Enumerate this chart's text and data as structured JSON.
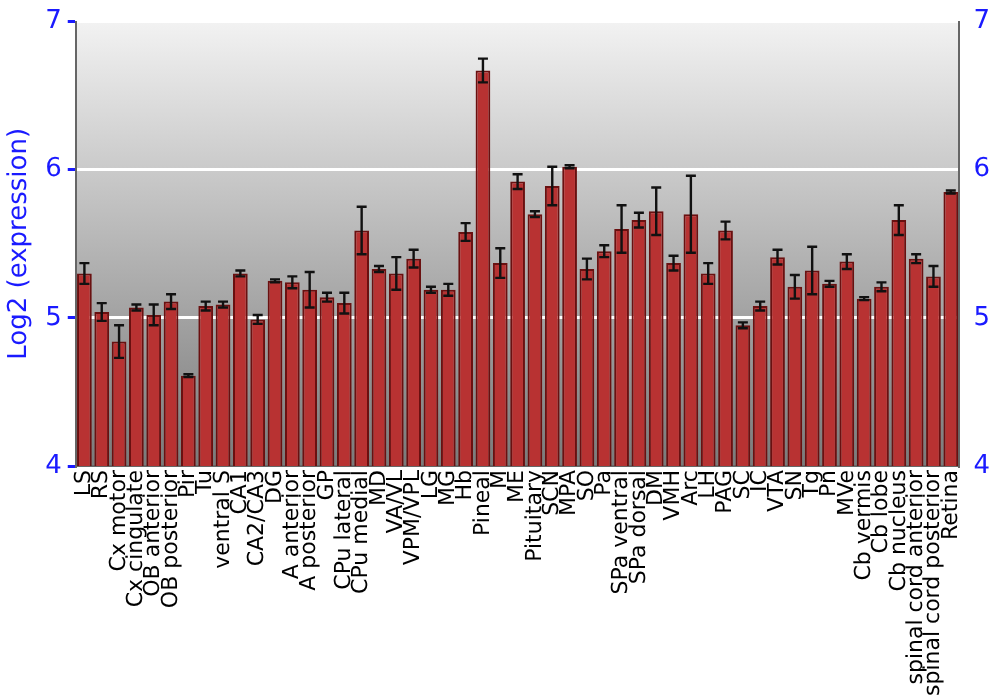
{
  "chart_data": {
    "type": "bar",
    "ylabel": "Log2 (expression)",
    "categories": [
      "LS",
      "RS",
      "Cx motor",
      "Cx cingulate",
      "OB anterior",
      "OB posterior",
      "Pir",
      "Tu",
      "ventral S",
      "CA1",
      "CA2/CA3",
      "DG",
      "A anterior",
      "A posterior",
      "GP",
      "CPu lateral",
      "CPu medial",
      "MD",
      "VA/VL",
      "VPM/VPL",
      "LG",
      "MG",
      "Hb",
      "Pineal",
      "M",
      "ME",
      "Pituitary",
      "SCN",
      "MPA",
      "SO",
      "Pa",
      "SPa ventral",
      "SPa dorsal",
      "DM",
      "VMH",
      "Arc",
      "LH",
      "PAG",
      "SC",
      "IC",
      "VTA",
      "SN",
      "Tg",
      "Pn",
      "MVe",
      "Cb vermis",
      "Cb lobe",
      "Cb nucleus",
      "spinal cord anterior",
      "spinal cord posterior",
      "Retina"
    ],
    "values": [
      5.3,
      5.04,
      4.84,
      5.07,
      5.02,
      5.11,
      4.61,
      5.08,
      5.09,
      5.3,
      4.99,
      5.25,
      5.24,
      5.19,
      5.14,
      5.1,
      5.59,
      5.33,
      5.3,
      5.4,
      5.19,
      5.19,
      5.58,
      6.67,
      5.37,
      5.92,
      5.7,
      5.89,
      6.02,
      5.33,
      5.45,
      5.6,
      5.66,
      5.72,
      5.37,
      5.7,
      5.3,
      5.59,
      4.95,
      5.08,
      5.41,
      5.21,
      5.32,
      5.23,
      5.38,
      5.13,
      5.21,
      5.66,
      5.4,
      5.28,
      5.85
    ],
    "errors": [
      0.07,
      0.06,
      0.11,
      0.02,
      0.07,
      0.05,
      0.01,
      0.03,
      0.02,
      0.02,
      0.03,
      0.01,
      0.04,
      0.12,
      0.03,
      0.07,
      0.16,
      0.02,
      0.11,
      0.06,
      0.02,
      0.04,
      0.06,
      0.08,
      0.1,
      0.05,
      0.02,
      0.13,
      0.01,
      0.07,
      0.04,
      0.16,
      0.05,
      0.16,
      0.05,
      0.26,
      0.07,
      0.06,
      0.02,
      0.03,
      0.05,
      0.08,
      0.16,
      0.02,
      0.05,
      0.01,
      0.03,
      0.1,
      0.03,
      0.07,
      0.01
    ],
    "color": "#b83232",
    "ylim": [
      4,
      7
    ],
    "yticks": [
      4,
      5,
      6,
      7
    ],
    "y2lim": [
      4,
      7
    ],
    "y2ticks": [
      4,
      5,
      6,
      7
    ],
    "grid": "y"
  }
}
